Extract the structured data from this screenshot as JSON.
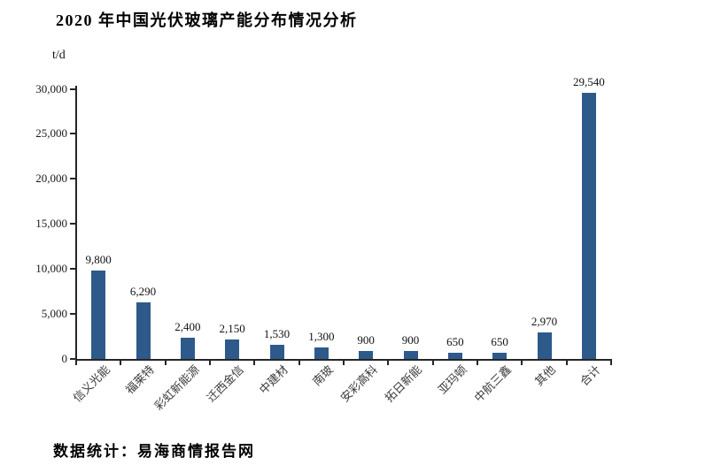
{
  "page": {
    "data_source_note": "数据统计：易海商情报告网"
  },
  "chart_data": {
    "type": "bar",
    "title": "2020 年中国光伏玻璃产能分布情况分析",
    "ylabel": "t/d",
    "xlabel": "",
    "categories": [
      "信义光能",
      "福莱特",
      "彩虹新能源",
      "迁西金信",
      "中建材",
      "南玻",
      "安彩高科",
      "拓日新能",
      "亚玛顿",
      "中航三鑫",
      "其他",
      "合计"
    ],
    "values": [
      9800,
      6290,
      2400,
      2150,
      1530,
      1300,
      900,
      900,
      650,
      650,
      2970,
      29540
    ],
    "value_labels": [
      "9,800",
      "6,290",
      "2,400",
      "2,150",
      "1,530",
      "1,300",
      "900",
      "900",
      "650",
      "650",
      "2,970",
      "29,540"
    ],
    "ylim": [
      0,
      30000
    ],
    "y_ticks": [
      0,
      5000,
      10000,
      15000,
      20000,
      25000,
      30000
    ],
    "y_tick_labels": [
      "0",
      "5,000",
      "10,000",
      "15,000",
      "20,000",
      "25,000",
      "30,000"
    ],
    "bar_color": "#2d5a8a",
    "grid": false,
    "legend": "none"
  }
}
